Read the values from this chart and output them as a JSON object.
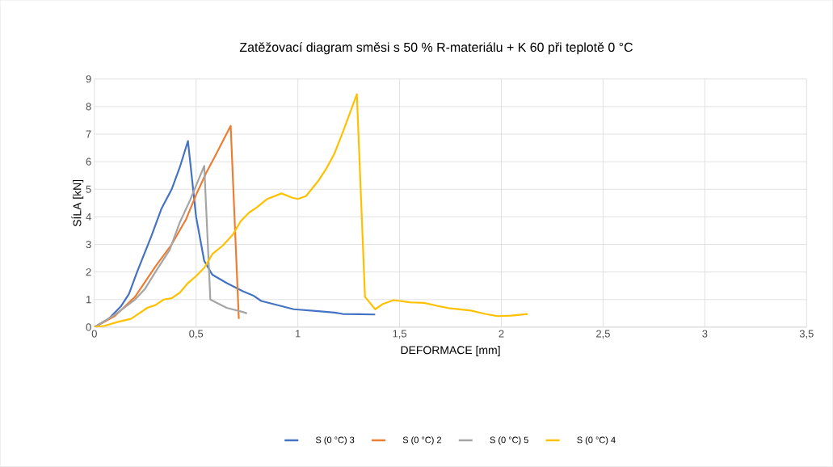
{
  "chart_data": {
    "type": "line",
    "title": "Zatěžovací diagram směsi s 50 % R-materiálu + K 60 při teplotě 0 °C",
    "xlabel": "DEFORMACE [mm]",
    "ylabel": "SÍLA [kN]",
    "xlim": [
      0,
      3.5
    ],
    "ylim": [
      0,
      9
    ],
    "xticks": [
      0,
      {
        "value": 0.5,
        "label": "0,5"
      },
      1,
      {
        "value": 1.5,
        "label": "1,5"
      },
      2,
      {
        "value": 2.5,
        "label": "2,5"
      },
      3,
      {
        "value": 3.5,
        "label": "3,5"
      }
    ],
    "yticks": [
      0,
      1,
      2,
      3,
      4,
      5,
      6,
      7,
      8,
      9
    ],
    "grid": true,
    "legend": "bottom",
    "marker": "none",
    "line_style": "solid",
    "series": [
      {
        "name": "S (0 °C) 3",
        "color": "#4472c4",
        "x": [
          0,
          0.07,
          0.13,
          0.17,
          0.21,
          0.28,
          0.33,
          0.38,
          0.42,
          0.46,
          0.5,
          0.54,
          0.58,
          0.65,
          0.73,
          0.78,
          0.82,
          0.9,
          0.98,
          1.1,
          1.18,
          1.22,
          1.3,
          1.38
        ],
        "values": [
          0,
          0.3,
          0.75,
          1.2,
          2.0,
          3.3,
          4.3,
          5.0,
          5.8,
          6.75,
          4.0,
          2.4,
          1.9,
          1.6,
          1.3,
          1.15,
          0.95,
          0.8,
          0.65,
          0.58,
          0.53,
          0.48,
          0.47,
          0.46
        ]
      },
      {
        "name": "S (0 °C) 2",
        "color": "#ed7d31",
        "x": [
          0,
          0.1,
          0.2,
          0.3,
          0.38,
          0.45,
          0.5,
          0.55,
          0.6,
          0.67,
          0.71
        ],
        "values": [
          0,
          0.4,
          1.1,
          2.2,
          3.0,
          3.9,
          4.8,
          5.6,
          6.3,
          7.3,
          0.3
        ]
      },
      {
        "name": "S (0 °C) 5",
        "color": "#a5a5a5",
        "x": [
          0,
          0.1,
          0.2,
          0.25,
          0.3,
          0.37,
          0.42,
          0.47,
          0.54,
          0.57,
          0.65,
          0.73,
          0.75
        ],
        "values": [
          0,
          0.45,
          1.0,
          1.4,
          2.0,
          2.8,
          3.8,
          4.6,
          5.85,
          1.0,
          0.7,
          0.55,
          0.5
        ]
      },
      {
        "name": "S (0 °C) 4",
        "color": "#ffc000",
        "x": [
          0,
          0.05,
          0.12,
          0.18,
          0.22,
          0.26,
          0.3,
          0.34,
          0.38,
          0.42,
          0.46,
          0.5,
          0.54,
          0.58,
          0.63,
          0.68,
          0.72,
          0.76,
          0.8,
          0.85,
          0.92,
          0.97,
          1.0,
          1.04,
          1.1,
          1.14,
          1.18,
          1.22,
          1.29,
          1.33,
          1.38,
          1.42,
          1.47,
          1.55,
          1.62,
          1.68,
          1.75,
          1.85,
          1.92,
          1.98,
          2.05,
          2.13
        ],
        "values": [
          0,
          0.05,
          0.2,
          0.3,
          0.5,
          0.7,
          0.8,
          1.0,
          1.05,
          1.25,
          1.6,
          1.85,
          2.15,
          2.65,
          2.95,
          3.35,
          3.85,
          4.15,
          4.35,
          4.65,
          4.85,
          4.7,
          4.65,
          4.75,
          5.3,
          5.75,
          6.3,
          7.05,
          8.45,
          1.1,
          0.65,
          0.85,
          0.98,
          0.9,
          0.88,
          0.78,
          0.68,
          0.6,
          0.48,
          0.4,
          0.42,
          0.48
        ]
      }
    ]
  }
}
